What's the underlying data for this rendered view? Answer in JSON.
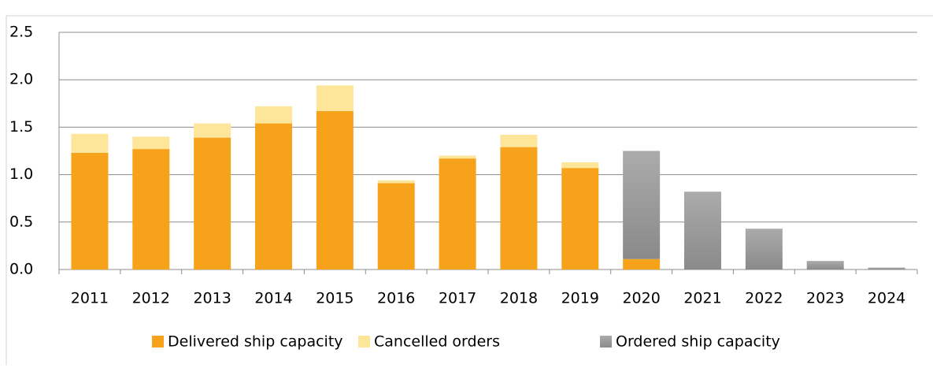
{
  "chart_data": {
    "type": "stacked_bar",
    "categories": [
      "2011",
      "2012",
      "2013",
      "2014",
      "2015",
      "2016",
      "2017",
      "2018",
      "2019",
      "2020",
      "2021",
      "2022",
      "2023",
      "2024"
    ],
    "series": [
      {
        "name": "Delivered ship capacity",
        "color": "#f7a21b",
        "values": [
          1.23,
          1.27,
          1.39,
          1.54,
          1.67,
          0.91,
          1.17,
          1.29,
          1.07,
          0.11,
          null,
          null,
          null,
          null
        ]
      },
      {
        "name": "Cancelled orders",
        "color": "#fde59a",
        "values": [
          0.2,
          0.13,
          0.15,
          0.18,
          0.27,
          0.03,
          0.03,
          0.13,
          0.06,
          null,
          null,
          null,
          null,
          null
        ]
      },
      {
        "name": "Ordered ship capacity",
        "color": "#9c9c9c",
        "values": [
          null,
          null,
          null,
          null,
          null,
          null,
          null,
          null,
          null,
          1.14,
          0.82,
          0.43,
          0.09,
          0.02
        ]
      }
    ],
    "ylim": [
      0,
      2.5
    ],
    "yticks": [
      {
        "value": 0,
        "label": "0.0"
      },
      {
        "value": 0.5,
        "label": "0.5"
      },
      {
        "value": 1,
        "label": "1.0"
      },
      {
        "value": 1.5,
        "label": "1.5"
      },
      {
        "value": 2,
        "label": "2.0"
      },
      {
        "value": 2.5,
        "label": "2.5"
      }
    ],
    "grid": true,
    "legend": "bottom"
  }
}
